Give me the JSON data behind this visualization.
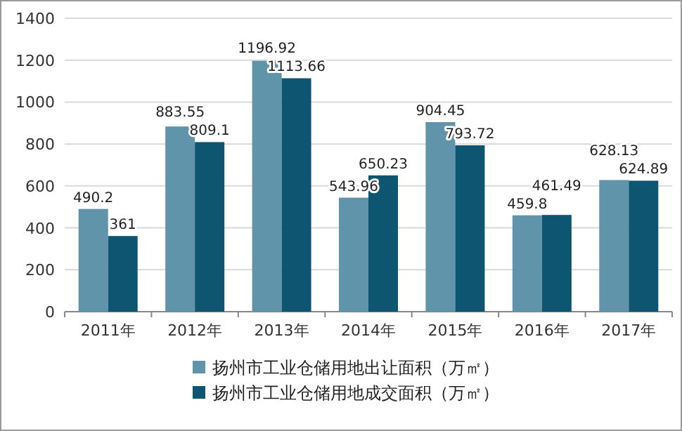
{
  "chart_data": {
    "type": "bar",
    "categories": [
      "2011年",
      "2012年",
      "2013年",
      "2014年",
      "2015年",
      "2016年",
      "2017年"
    ],
    "series": [
      {
        "name": "扬州市工业仓储用地出让面积（万㎡）",
        "color": "#6094ab",
        "values": [
          490.2,
          883.55,
          1196.92,
          543.96,
          904.45,
          459.8,
          628.13
        ]
      },
      {
        "name": "扬州市工业仓储用地成交面积（万㎡）",
        "color": "#0d5570",
        "values": [
          361,
          809.1,
          1113.66,
          650.23,
          793.72,
          461.49,
          624.89
        ]
      }
    ],
    "ylim": [
      0,
      1400
    ],
    "yticks": [
      0,
      200,
      400,
      600,
      800,
      1000,
      1200,
      1400
    ],
    "grid": "y",
    "legend": "bottom",
    "data_labels": true
  }
}
